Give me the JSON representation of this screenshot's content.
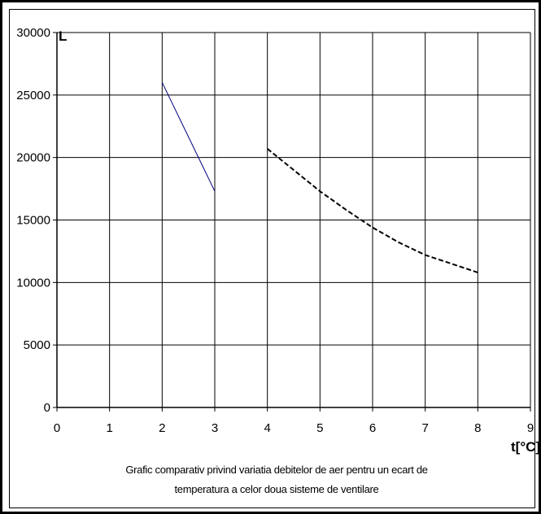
{
  "chart_data": {
    "type": "line",
    "title": "",
    "xlabel": "t[°C]",
    "ylabel": "L",
    "xlim": [
      0,
      9
    ],
    "ylim": [
      0,
      30000
    ],
    "x_ticks": [
      0,
      1,
      2,
      3,
      4,
      5,
      6,
      7,
      8,
      9
    ],
    "y_ticks": [
      0,
      5000,
      10000,
      15000,
      20000,
      25000,
      30000
    ],
    "grid": true,
    "legend": "none",
    "series": [
      {
        "style": "solid",
        "color": "#000080",
        "points": [
          [
            2,
            26000
          ],
          [
            3,
            17300
          ]
        ]
      },
      {
        "style": "dashed",
        "color": "#000000",
        "points": [
          [
            4,
            20700
          ],
          [
            4.5,
            19000
          ],
          [
            5,
            17300
          ],
          [
            5.5,
            15800
          ],
          [
            6,
            14400
          ],
          [
            6.5,
            13200
          ],
          [
            7,
            12200
          ],
          [
            7.5,
            11500
          ],
          [
            8,
            10800
          ]
        ]
      }
    ]
  },
  "caption": {
    "line1": "Grafic comparativ privind variatia debitelor de aer pentru un ecart de",
    "line2": "temperatura a celor doua sisteme de ventilare"
  }
}
